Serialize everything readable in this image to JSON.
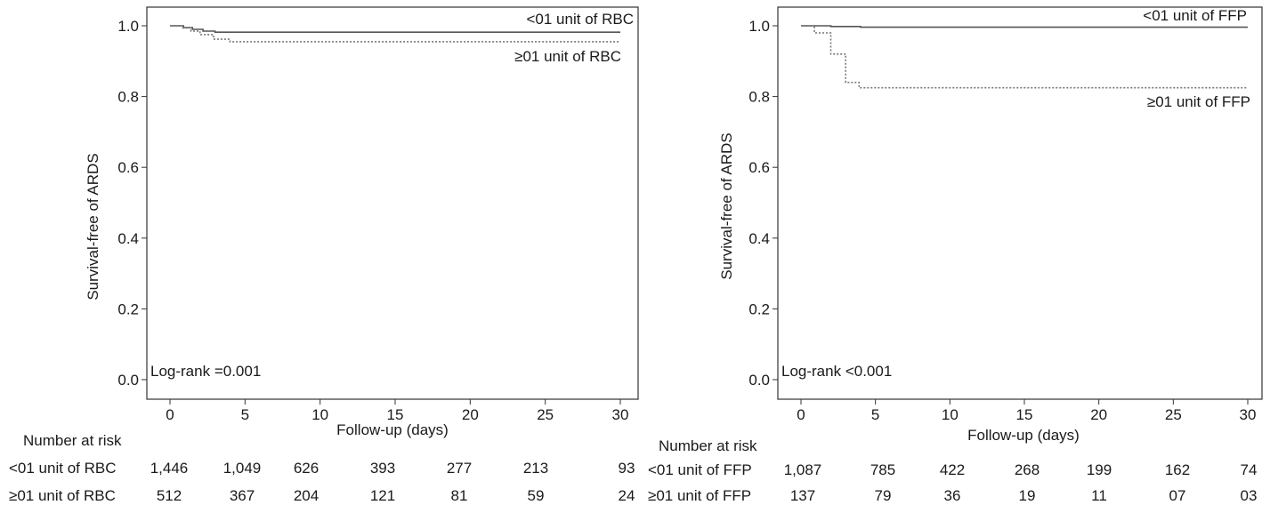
{
  "chart_data": [
    {
      "type": "line",
      "xlabel": "Follow-up (days)",
      "ylabel": "Survival-free of ARDS",
      "xlim": [
        0,
        30
      ],
      "ylim": [
        0.0,
        1.0
      ],
      "xticks": [
        "0",
        "5",
        "10",
        "15",
        "20",
        "25",
        "30"
      ],
      "yticks": [
        "0.0",
        "0.2",
        "0.4",
        "0.6",
        "0.8",
        "1.0"
      ],
      "grid": false,
      "annotation": "Log-rank =0.001",
      "series": [
        {
          "name": "<01 unit of RBC",
          "style": "solid",
          "color": "#555555",
          "points": [
            [
              0,
              1.0
            ],
            [
              0.9,
              1.0
            ],
            [
              0.9,
              0.995
            ],
            [
              1.5,
              0.995
            ],
            [
              1.5,
              0.99
            ],
            [
              2.2,
              0.99
            ],
            [
              2.2,
              0.985
            ],
            [
              3.0,
              0.985
            ],
            [
              3.0,
              0.982
            ],
            [
              30,
              0.982
            ]
          ]
        },
        {
          "name": "≥01 unit of RBC",
          "style": "dotted",
          "color": "#777777",
          "points": [
            [
              0,
              1.0
            ],
            [
              0.8,
              1.0
            ],
            [
              0.8,
              0.994
            ],
            [
              1.4,
              0.994
            ],
            [
              1.4,
              0.985
            ],
            [
              2.0,
              0.985
            ],
            [
              2.0,
              0.975
            ],
            [
              2.9,
              0.975
            ],
            [
              2.9,
              0.962
            ],
            [
              4.0,
              0.962
            ],
            [
              4.0,
              0.955
            ],
            [
              30,
              0.955
            ]
          ]
        }
      ],
      "risk_table": {
        "header": "Number at risk",
        "rows": [
          {
            "label": "<01 unit of RBC",
            "values": [
              "1,446",
              "1,049",
              "626",
              "393",
              "277",
              "213",
              "93"
            ]
          },
          {
            "label": "≥01 unit of RBC",
            "values": [
              "512",
              "367",
              "204",
              "121",
              "81",
              "59",
              "24"
            ]
          }
        ]
      }
    },
    {
      "type": "line",
      "xlabel": "Follow-up (days)",
      "ylabel": "Survival-free of ARDS",
      "xlim": [
        0,
        30
      ],
      "ylim": [
        0.0,
        1.0
      ],
      "xticks": [
        "0",
        "5",
        "10",
        "15",
        "20",
        "25",
        "30"
      ],
      "yticks": [
        "0.0",
        "0.2",
        "0.4",
        "0.6",
        "0.8",
        "1.0"
      ],
      "grid": false,
      "annotation": "Log-rank <0.001",
      "series": [
        {
          "name": "<01 unit of FFP",
          "style": "solid",
          "color": "#555555",
          "points": [
            [
              0,
              1.0
            ],
            [
              2.0,
              1.0
            ],
            [
              2.0,
              0.998
            ],
            [
              4.0,
              0.998
            ],
            [
              4.0,
              0.996
            ],
            [
              30,
              0.996
            ]
          ]
        },
        {
          "name": "≥01 unit of FFP",
          "style": "dotted",
          "color": "#777777",
          "points": [
            [
              0,
              1.0
            ],
            [
              0.9,
              1.0
            ],
            [
              0.9,
              0.98
            ],
            [
              2.0,
              0.98
            ],
            [
              2.0,
              0.92
            ],
            [
              3.0,
              0.92
            ],
            [
              3.0,
              0.84
            ],
            [
              3.9,
              0.84
            ],
            [
              3.9,
              0.825
            ],
            [
              30,
              0.825
            ]
          ]
        }
      ],
      "risk_table": {
        "header": "Number at risk",
        "rows": [
          {
            "label": "<01 unit of FFP",
            "values": [
              "1,087",
              "785",
              "422",
              "268",
              "199",
              "162",
              "74"
            ]
          },
          {
            "label": "≥01 unit of FFP",
            "values": [
              "137",
              "79",
              "36",
              "19",
              "11",
              "07",
              "03"
            ]
          }
        ]
      }
    }
  ]
}
